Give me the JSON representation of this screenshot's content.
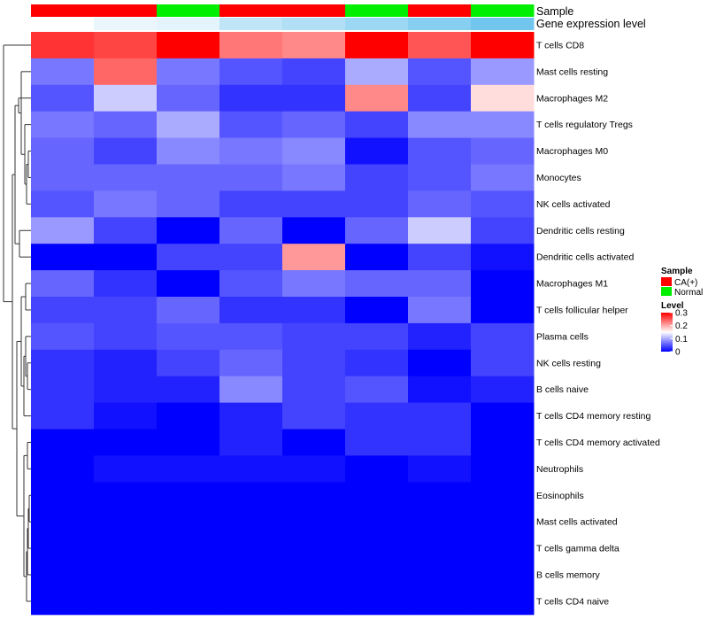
{
  "chart_data": {
    "type": "heatmap",
    "rows": [
      "T cells CD8",
      "Mast cells resting",
      "Macrophages M2",
      "T cells regulatory  Tregs",
      "Macrophages M0",
      "Monocytes",
      "NK cells activated",
      "Dendritic cells resting",
      "Dendritic cells activated",
      "Macrophages M1",
      "T cells follicular helper",
      "Plasma cells",
      "NK cells resting",
      "B cells naive",
      "T cells CD4 memory resting",
      "T cells CD4 memory activated",
      "Neutrophils",
      "Eosinophils",
      "Mast cells activated",
      "T cells gamma delta",
      "B cells memory",
      "T cells CD4 naive"
    ],
    "values": [
      [
        0.27,
        0.26,
        0.3,
        0.23,
        0.22,
        0.3,
        0.25,
        0.3
      ],
      [
        0.07,
        0.24,
        0.07,
        0.05,
        0.04,
        0.1,
        0.05,
        0.09
      ],
      [
        0.05,
        0.12,
        0.06,
        0.03,
        0.03,
        0.22,
        0.04,
        0.17
      ],
      [
        0.07,
        0.06,
        0.1,
        0.05,
        0.06,
        0.04,
        0.08,
        0.08
      ],
      [
        0.06,
        0.04,
        0.08,
        0.07,
        0.08,
        0.01,
        0.05,
        0.06
      ],
      [
        0.06,
        0.06,
        0.06,
        0.06,
        0.07,
        0.04,
        0.05,
        0.07
      ],
      [
        0.05,
        0.07,
        0.06,
        0.04,
        0.04,
        0.04,
        0.06,
        0.05
      ],
      [
        0.09,
        0.04,
        0.0,
        0.06,
        0.0,
        0.06,
        0.12,
        0.04
      ],
      [
        0.0,
        0.0,
        0.04,
        0.04,
        0.21,
        0.0,
        0.04,
        0.01
      ],
      [
        0.06,
        0.03,
        0.0,
        0.05,
        0.07,
        0.06,
        0.06,
        0.0
      ],
      [
        0.04,
        0.04,
        0.06,
        0.03,
        0.03,
        0.0,
        0.07,
        0.0
      ],
      [
        0.05,
        0.04,
        0.05,
        0.05,
        0.04,
        0.04,
        0.02,
        0.04
      ],
      [
        0.03,
        0.02,
        0.04,
        0.06,
        0.04,
        0.03,
        0.0,
        0.04
      ],
      [
        0.03,
        0.02,
        0.02,
        0.08,
        0.04,
        0.05,
        0.01,
        0.02
      ],
      [
        0.03,
        0.01,
        0.0,
        0.02,
        0.04,
        0.03,
        0.03,
        0.0
      ],
      [
        0.0,
        0.0,
        0.0,
        0.02,
        0.0,
        0.03,
        0.03,
        0.0
      ],
      [
        0.0,
        0.01,
        0.01,
        0.01,
        0.01,
        0.0,
        0.01,
        0.0
      ],
      [
        0.0,
        0.0,
        0.0,
        0.0,
        0.0,
        0.0,
        0.0,
        0.0
      ],
      [
        0.0,
        0.0,
        0.0,
        0.0,
        0.0,
        0.0,
        0.0,
        0.0
      ],
      [
        0.0,
        0.0,
        0.0,
        0.0,
        0.0,
        0.0,
        0.0,
        0.0
      ],
      [
        0.0,
        0.0,
        0.0,
        0.0,
        0.0,
        0.0,
        0.0,
        0.0
      ],
      [
        0.0,
        0.0,
        0.0,
        0.0,
        0.0,
        0.0,
        0.0,
        0.0
      ]
    ],
    "sample_annotation": [
      "CA(+)",
      "CA(+)",
      "Normal",
      "CA(+)",
      "CA(+)",
      "Normal",
      "CA(+)",
      "Normal"
    ],
    "gene_expression_annotation": [
      0.0,
      0.15,
      0.2,
      0.45,
      0.55,
      0.7,
      0.85,
      1.0
    ],
    "annotation_labels": {
      "sample": "Sample",
      "gene_expression": "Gene expression level"
    },
    "legend": {
      "sample_title": "Sample",
      "sample_entries": [
        {
          "label": "CA(+)",
          "color": "#ff0000"
        },
        {
          "label": "Normal",
          "color": "#00ee00"
        }
      ],
      "level_title": "Level",
      "level_ticks": [
        "0.3",
        "0.2",
        "0.1",
        "0"
      ],
      "level_tick_values": [
        0.3,
        0.2,
        0.1,
        0.0
      ],
      "position": "right"
    },
    "color_scale": {
      "low": "#0000ff",
      "mid": "#ffffff",
      "high": "#ff0000",
      "min": 0,
      "max": 0.3,
      "gene_expression_low": "#ffffff",
      "gene_expression_high": "#72c6ee"
    },
    "dendrogram_side": "left"
  }
}
